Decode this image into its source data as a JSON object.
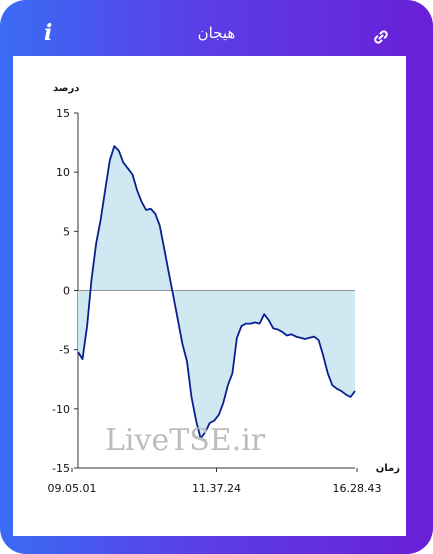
{
  "header": {
    "title": "هیجان",
    "info_icon": "info-icon",
    "link_icon": "link-icon"
  },
  "watermark": "LiveTSE.ir",
  "colors": {
    "accent_start": "#3a6cf5",
    "accent_end": "#6a1fd8",
    "line": "#0a1f8f",
    "fill": "#cfe8f1"
  },
  "chart_data": {
    "type": "area",
    "ylabel": "درصد",
    "xlabel": "زمان",
    "ylim": [
      -15,
      15
    ],
    "yticks": [
      "15",
      "10",
      "5",
      "0",
      "-5",
      "-10",
      "-15"
    ],
    "xtick_labels": [
      "09.05.01",
      "11.37.24",
      "16.28.43"
    ],
    "grid": false,
    "series": [
      {
        "values": [
          -5.2,
          -5.8,
          -3.0,
          1.0,
          4.0,
          6.0,
          8.5,
          11.0,
          12.2,
          11.8,
          10.8,
          10.3,
          9.8,
          8.5,
          7.5,
          6.8,
          6.9,
          6.5,
          5.5,
          3.5,
          1.5,
          -0.5,
          -2.5,
          -4.5,
          -6.0,
          -9.0,
          -11.0,
          -12.5,
          -12.0,
          -11.2,
          -11.0,
          -10.5,
          -9.5,
          -8.0,
          -7.0,
          -4.0,
          -3.0,
          -2.8,
          -2.8,
          -2.7,
          -2.8,
          -2.0,
          -2.5,
          -3.2,
          -3.3,
          -3.5,
          -3.8,
          -3.7,
          -3.9,
          -4.0,
          -4.1,
          -4.0,
          -3.9,
          -4.2,
          -5.5,
          -7.0,
          -8.0,
          -8.3,
          -8.5,
          -8.8,
          -9.0,
          -8.5
        ]
      }
    ]
  }
}
